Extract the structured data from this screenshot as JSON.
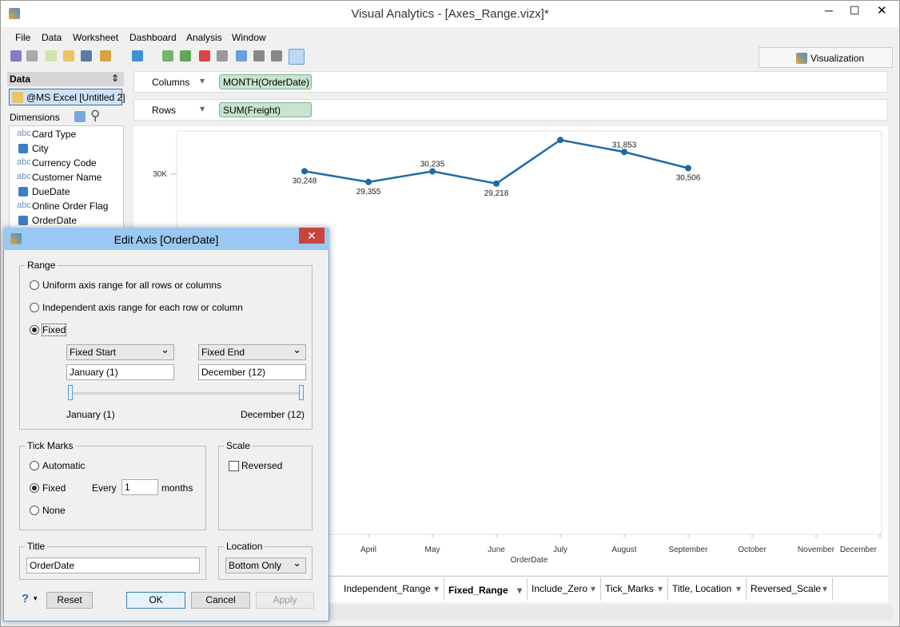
{
  "window": {
    "title": "Visual Analytics - [Axes_Range.vizx]*"
  },
  "menu": [
    "File",
    "Data",
    "Worksheet",
    "Dashboard",
    "Analysis",
    "Window"
  ],
  "visualization_tab": "Visualization",
  "data_panel": {
    "title": "Data",
    "source": "@MS Excel [Untitled 2]",
    "dimensions_label": "Dimensions",
    "fields": [
      {
        "icon": "abc",
        "name": "Card Type"
      },
      {
        "name": "City"
      },
      {
        "icon": "abc",
        "name": "Currency Code"
      },
      {
        "icon": "abc",
        "name": "Customer Name"
      },
      {
        "name": "DueDate"
      },
      {
        "icon": "abc",
        "name": "Online Order Flag"
      },
      {
        "name": "OrderDate"
      }
    ]
  },
  "shelves": {
    "columns_label": "Columns",
    "columns_pill": "MONTH(OrderDate)",
    "rows_label": "Rows",
    "rows_pill": "SUM(Freight)"
  },
  "chart_data": {
    "type": "line",
    "x_label": "OrderDate",
    "categories": [
      null,
      null,
      null,
      "April",
      "May",
      "June",
      "July",
      "August",
      "September",
      "October",
      "November",
      "December"
    ],
    "series": [
      {
        "name": "SUM(Freight)",
        "color": "#1f6aa5",
        "values": [
          null,
          null,
          30248,
          29355,
          30235,
          29218,
          32850,
          31853,
          30506,
          null,
          null,
          null
        ],
        "value_labels": [
          null,
          null,
          "30,248",
          "29,355",
          "30,235",
          "29,218",
          null,
          "31,853",
          "30,506",
          null,
          null,
          null
        ]
      }
    ],
    "ylim": [
      0,
      33600
    ],
    "yticks": [
      {
        "value": 30000,
        "label": "30K"
      }
    ]
  },
  "sheet_tabs": [
    "Independent_Range",
    "Fixed_Range",
    "Include_Zero",
    "Tick_Marks",
    "Title, Location",
    "Reversed_Scale"
  ],
  "dialog": {
    "title": "Edit Axis [OrderDate]",
    "range": {
      "label": "Range",
      "uniform": "Uniform axis range for all rows or columns",
      "independent": "Independent axis range for each row or column",
      "fixed": "Fixed",
      "start_mode": "Fixed Start",
      "end_mode": "Fixed End",
      "start_value": "January (1)",
      "end_value": "December (12)"
    },
    "tick_marks": {
      "label": "Tick Marks",
      "automatic": "Automatic",
      "fixed": "Fixed",
      "every": "Every",
      "every_value": "1",
      "unit": "months",
      "none": "None"
    },
    "scale": {
      "label": "Scale",
      "reversed": "Reversed"
    },
    "title_group": {
      "label": "Title",
      "value": "OrderDate"
    },
    "location": {
      "label": "Location",
      "value": "Bottom Only"
    },
    "buttons": {
      "help": "?",
      "reset": "Reset",
      "ok": "OK",
      "cancel": "Cancel",
      "apply": "Apply"
    }
  }
}
